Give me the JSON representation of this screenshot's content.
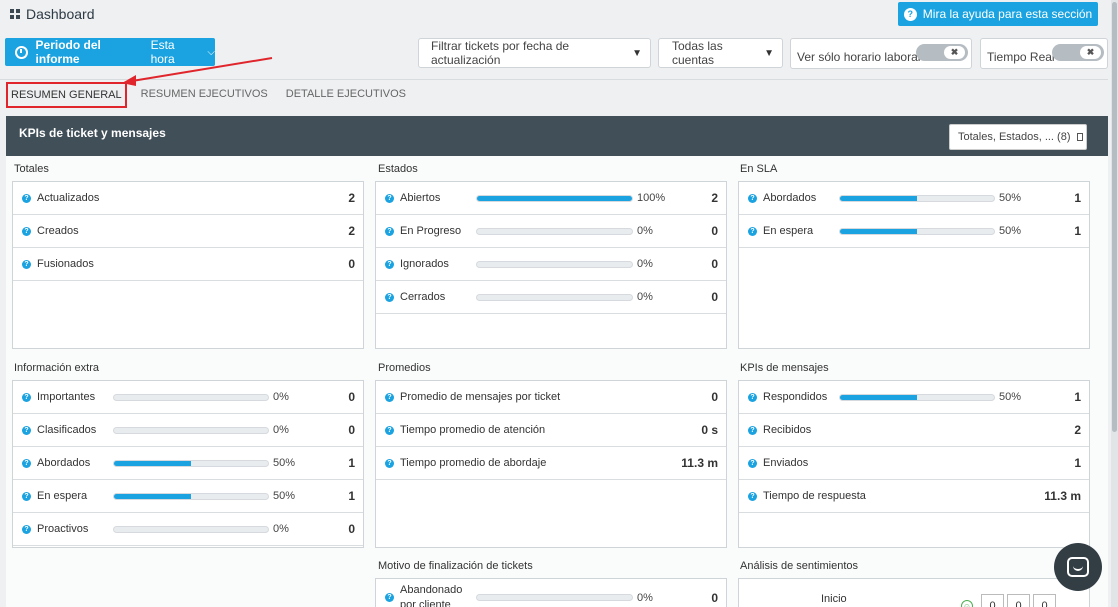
{
  "header": {
    "title": "Dashboard",
    "help_button": "Mira la ayuda para esta sección"
  },
  "toolbar": {
    "period_label": "Periodo del informe",
    "period_value": "Esta hora",
    "filter_date": "Filtrar tickets por fecha de actualización",
    "filter_accounts": "Todas las cuentas",
    "toggle_work_hours": "Ver sólo horario laboral",
    "toggle_realtime": "Tiempo Real",
    "toggle_knob": "✖"
  },
  "tabs": [
    {
      "label": "RESUMEN GENERAL"
    },
    {
      "label": "RESUMEN EJECUTIVOS"
    },
    {
      "label": "DETALLE EJECUTIVOS"
    }
  ],
  "panel": {
    "title": "KPIs de ticket y mensajes",
    "selector": "Totales, Estados, ... (8)"
  },
  "cards": {
    "totales": {
      "title": "Totales",
      "rows": [
        {
          "label": "Actualizados",
          "value": "2"
        },
        {
          "label": "Creados",
          "value": "2"
        },
        {
          "label": "Fusionados",
          "value": "0"
        }
      ]
    },
    "estados": {
      "title": "Estados",
      "rows": [
        {
          "label": "Abiertos",
          "pct": "100%",
          "fill": 100,
          "value": "2"
        },
        {
          "label": "En Progreso",
          "pct": "0%",
          "fill": 0,
          "value": "0"
        },
        {
          "label": "Ignorados",
          "pct": "0%",
          "fill": 0,
          "value": "0"
        },
        {
          "label": "Cerrados",
          "pct": "0%",
          "fill": 0,
          "value": "0"
        }
      ]
    },
    "sla": {
      "title": "En SLA",
      "rows": [
        {
          "label": "Abordados",
          "pct": "50%",
          "fill": 50,
          "value": "1"
        },
        {
          "label": "En espera",
          "pct": "50%",
          "fill": 50,
          "value": "1"
        }
      ]
    },
    "extra": {
      "title": "Información extra",
      "rows": [
        {
          "label": "Importantes",
          "pct": "0%",
          "fill": 0,
          "value": "0"
        },
        {
          "label": "Clasificados",
          "pct": "0%",
          "fill": 0,
          "value": "0"
        },
        {
          "label": "Abordados",
          "pct": "50%",
          "fill": 50,
          "value": "1"
        },
        {
          "label": "En espera",
          "pct": "50%",
          "fill": 50,
          "value": "1"
        },
        {
          "label": "Proactivos",
          "pct": "0%",
          "fill": 0,
          "value": "0"
        }
      ]
    },
    "promedios": {
      "title": "Promedios",
      "rows": [
        {
          "label": "Promedio de mensajes por ticket",
          "value": "0"
        },
        {
          "label": "Tiempo promedio de atención",
          "value": "0 s"
        },
        {
          "label": "Tiempo promedio de abordaje",
          "value": "11.3 m"
        }
      ]
    },
    "mensajes": {
      "title": "KPIs de mensajes",
      "rows": [
        {
          "label": "Respondidos",
          "pct": "50%",
          "fill": 50,
          "value": "1"
        },
        {
          "label": "Recibidos",
          "value": "2"
        },
        {
          "label": "Enviados",
          "value": "1"
        },
        {
          "label": "Tiempo de respuesta",
          "value": "11.3 m"
        }
      ]
    },
    "motivo": {
      "title": "Motivo de finalización de tickets",
      "rows": [
        {
          "label_line1": "Abandonado",
          "label_line2": "por cliente",
          "pct": "0%",
          "fill": 0,
          "value": "0"
        }
      ]
    },
    "sentimientos": {
      "title": "Análisis de sentimientos",
      "label": "Inicio",
      "smile": "☺",
      "counts": [
        "0",
        "0",
        "0"
      ]
    }
  },
  "colors": {
    "accent": "#1aa3e0",
    "panel_header": "#414f58",
    "highlight": "#e0262c"
  }
}
